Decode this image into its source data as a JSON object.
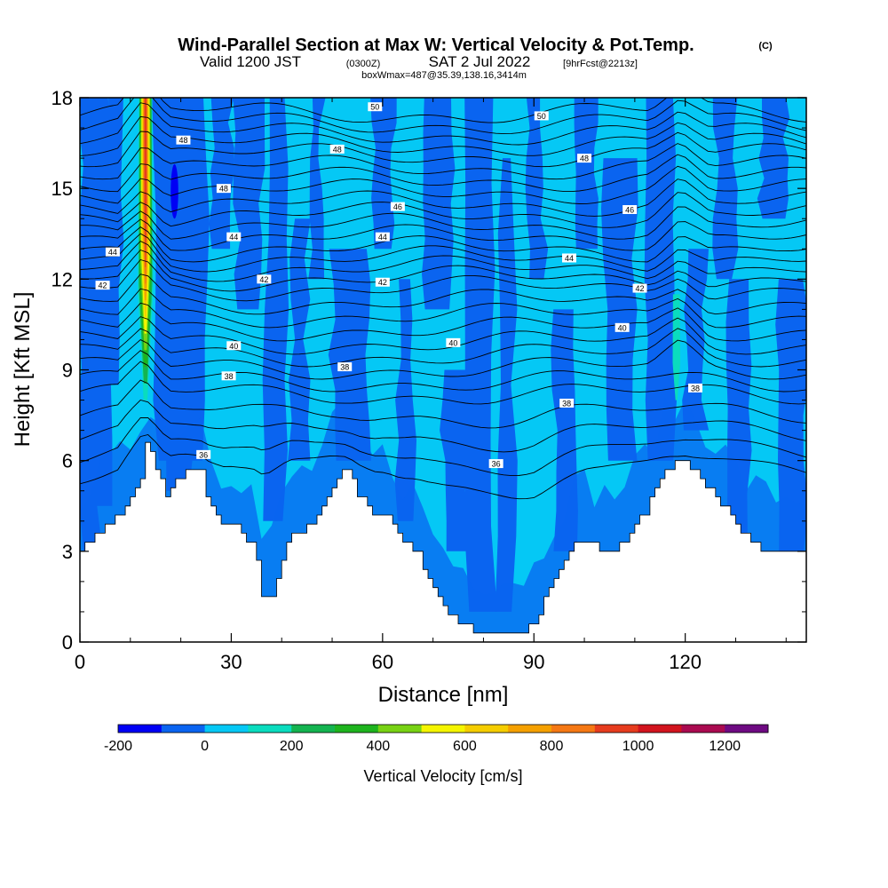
{
  "title": {
    "main": "Wind-Parallel Section at Max W: Vertical Velocity & Pot.Temp.",
    "copyright": "(C)",
    "valid_prefix": "Valid 1200 JST",
    "valid_utc": "(0300Z)",
    "valid_date": "SAT 2 Jul 2022",
    "forecast": "[9hrFcst@2213z]",
    "box_info": "boxWmax=487@35.39,138.16,3414m"
  },
  "chart_data": {
    "type": "heatmap",
    "xlabel": "Distance [nm]",
    "ylabel": "Height [Kft MSL]",
    "xlim": [
      0,
      144
    ],
    "ylim": [
      0,
      18
    ],
    "x_ticks": [
      0,
      30,
      60,
      90,
      120
    ],
    "y_ticks": [
      0,
      3,
      6,
      9,
      12,
      15,
      18
    ],
    "colorbar": {
      "label": "Vertical Velocity [cm/s]",
      "min": -200,
      "max": 1300,
      "step": 100,
      "tick_values": [
        -200,
        0,
        200,
        400,
        600,
        800,
        1000,
        1200
      ],
      "tick_labels": [
        "-200",
        "0",
        "200",
        "400",
        "600",
        "800",
        "1000",
        "1200"
      ],
      "colors": [
        "#0000f5",
        "#0a64f0",
        "#05c8f5",
        "#0adcbe",
        "#14b450",
        "#1eb41e",
        "#78d214",
        "#f5f500",
        "#f5cd00",
        "#f5a000",
        "#f57814",
        "#e63c1e",
        "#d2141e",
        "#aa0a50",
        "#6e0a82"
      ]
    },
    "terrain_kft": [
      [
        0,
        3
      ],
      [
        2,
        3.3
      ],
      [
        4,
        3.6
      ],
      [
        6,
        3.9
      ],
      [
        8,
        4.2
      ],
      [
        10,
        4.8
      ],
      [
        12,
        5.5
      ],
      [
        13,
        6.5
      ],
      [
        14,
        6.2
      ],
      [
        16,
        5.4
      ],
      [
        17,
        4.8
      ],
      [
        19,
        5.3
      ],
      [
        21,
        5.6
      ],
      [
        24,
        5.6
      ],
      [
        25,
        4.8
      ],
      [
        27,
        4.2
      ],
      [
        28,
        3.8
      ],
      [
        30,
        3.9
      ],
      [
        32,
        3.6
      ],
      [
        34,
        3.2
      ],
      [
        35,
        2.6
      ],
      [
        36,
        1.6
      ],
      [
        37,
        1.4
      ],
      [
        38,
        1.6
      ],
      [
        39,
        2.2
      ],
      [
        40,
        2.8
      ],
      [
        42,
        3.6
      ],
      [
        45,
        3.8
      ],
      [
        47,
        4.1
      ],
      [
        49,
        4.9
      ],
      [
        51,
        5.4
      ],
      [
        52,
        5.8
      ],
      [
        54,
        5.4
      ],
      [
        55,
        4.9
      ],
      [
        57,
        4.5
      ],
      [
        58,
        4.2
      ],
      [
        60,
        4.3
      ],
      [
        62,
        4.0
      ],
      [
        63,
        3.6
      ],
      [
        65,
        3.2
      ],
      [
        67,
        3.0
      ],
      [
        68,
        2.4
      ],
      [
        70,
        1.8
      ],
      [
        72,
        1.2
      ],
      [
        74,
        0.8
      ],
      [
        76,
        0.6
      ],
      [
        78,
        0.4
      ],
      [
        80,
        0.3
      ],
      [
        86,
        0.3
      ],
      [
        88,
        0.4
      ],
      [
        90,
        0.6
      ],
      [
        91,
        1.0
      ],
      [
        92,
        1.4
      ],
      [
        94,
        2.2
      ],
      [
        96,
        2.8
      ],
      [
        98,
        3.2
      ],
      [
        100,
        3.4
      ],
      [
        102,
        3.2
      ],
      [
        104,
        3.0
      ],
      [
        106,
        3.1
      ],
      [
        108,
        3.4
      ],
      [
        110,
        3.8
      ],
      [
        112,
        4.3
      ],
      [
        114,
        5.0
      ],
      [
        115,
        5.4
      ],
      [
        117,
        5.8
      ],
      [
        120,
        6.0
      ],
      [
        121,
        5.8
      ],
      [
        123,
        5.4
      ],
      [
        125,
        5.0
      ],
      [
        127,
        4.6
      ],
      [
        129,
        4.1
      ],
      [
        131,
        3.6
      ],
      [
        133,
        3.3
      ],
      [
        135,
        3.1
      ],
      [
        137,
        3.0
      ],
      [
        144,
        3.0
      ]
    ],
    "updraft_columns": [
      {
        "x_range": [
          11.5,
          14.5
        ],
        "y_range": [
          8,
          18
        ],
        "peak_cm_s": 1000
      },
      {
        "x_range": [
          117.5,
          119
        ],
        "y_range": [
          8,
          11.5
        ],
        "peak_cm_s": 150
      }
    ],
    "downdraft_columns": [
      {
        "x_range": [
          18,
          19.5
        ],
        "y_range": [
          14,
          15.8
        ],
        "min_cm_s": -200
      }
    ],
    "contours": {
      "variable": "Potential Temperature",
      "levels": [
        36,
        38,
        40,
        42,
        44,
        46,
        48,
        50
      ],
      "labels": [
        {
          "text": "50",
          "x": 58.5,
          "y": 17.7
        },
        {
          "text": "50",
          "x": 91.5,
          "y": 17.4
        },
        {
          "text": "48",
          "x": 20.5,
          "y": 16.6
        },
        {
          "text": "48",
          "x": 51,
          "y": 16.3
        },
        {
          "text": "48",
          "x": 100,
          "y": 16.0
        },
        {
          "text": "48",
          "x": 28.5,
          "y": 15.0
        },
        {
          "text": "46",
          "x": 63,
          "y": 14.4
        },
        {
          "text": "46",
          "x": 109,
          "y": 14.3
        },
        {
          "text": "44",
          "x": 6.5,
          "y": 12.9
        },
        {
          "text": "44",
          "x": 30.5,
          "y": 13.4
        },
        {
          "text": "44",
          "x": 60,
          "y": 13.4
        },
        {
          "text": "44",
          "x": 97,
          "y": 12.7
        },
        {
          "text": "42",
          "x": 4.5,
          "y": 11.8
        },
        {
          "text": "42",
          "x": 36.5,
          "y": 12.0
        },
        {
          "text": "42",
          "x": 60,
          "y": 11.9
        },
        {
          "text": "42",
          "x": 111,
          "y": 11.7
        },
        {
          "text": "40",
          "x": 30.5,
          "y": 9.8
        },
        {
          "text": "40",
          "x": 74,
          "y": 9.9
        },
        {
          "text": "40",
          "x": 107.5,
          "y": 10.4
        },
        {
          "text": "38",
          "x": 29.5,
          "y": 8.8
        },
        {
          "text": "38",
          "x": 52.5,
          "y": 9.1
        },
        {
          "text": "38",
          "x": 96.5,
          "y": 7.9
        },
        {
          "text": "38",
          "x": 122,
          "y": 8.4
        },
        {
          "text": "36",
          "x": 24.5,
          "y": 6.2
        },
        {
          "text": "36",
          "x": 82.5,
          "y": 5.9
        }
      ]
    }
  }
}
